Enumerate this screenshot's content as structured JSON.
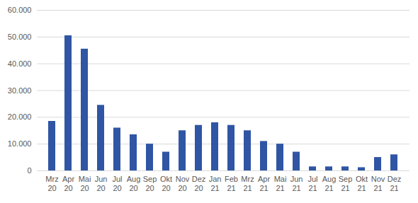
{
  "chart_data": {
    "type": "bar",
    "categories": [
      "Mrz 20",
      "Apr 20",
      "Mai 20",
      "Jun 20",
      "Jul 20",
      "Aug 20",
      "Sep 20",
      "Okt 20",
      "Nov 20",
      "Dez 20",
      "Jan 21",
      "Feb 21",
      "Mrz 21",
      "Apr 21",
      "Mai 21",
      "Jun 21",
      "Jul 21",
      "Aug 21",
      "Sep 21",
      "Okt 21",
      "Nov 21",
      "Dez 21"
    ],
    "values": [
      18500,
      50500,
      45500,
      24500,
      16000,
      13500,
      10000,
      7000,
      15000,
      17000,
      18000,
      17000,
      15000,
      11000,
      10000,
      7000,
      1500,
      1500,
      1500,
      1200,
      5000,
      6000
    ],
    "color": "#2f55a4",
    "ylim": [
      0,
      60000
    ],
    "yticks": [
      0,
      {
        "value": 10000,
        "label": "10.000"
      },
      {
        "value": 20000,
        "label": "20.000"
      },
      {
        "value": 30000,
        "label": "30.000"
      },
      {
        "value": 40000,
        "label": "40.000"
      },
      {
        "value": 50000,
        "label": "50.000"
      },
      {
        "value": 60000,
        "label": "60.000"
      }
    ],
    "grid": true
  }
}
